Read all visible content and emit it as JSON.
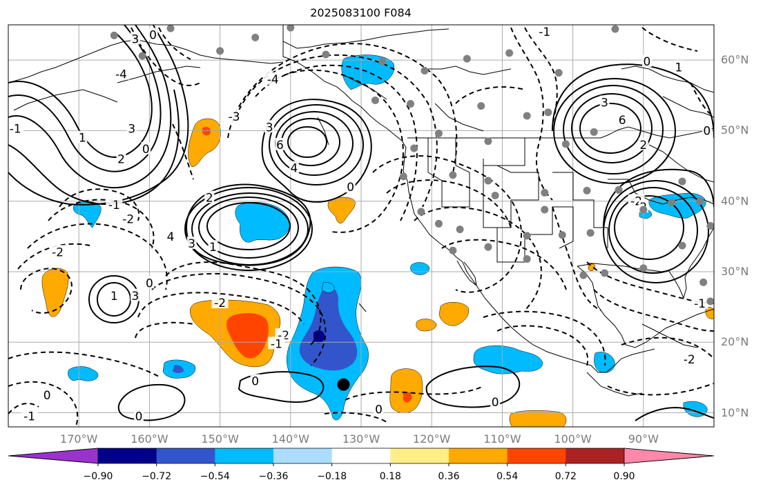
{
  "map": {
    "title": "2025083100 F084",
    "lon_ticks": [
      {
        "value": -170,
        "label": "170°W"
      },
      {
        "value": -160,
        "label": "160°W"
      },
      {
        "value": -150,
        "label": "150°W"
      },
      {
        "value": -140,
        "label": "140°W"
      },
      {
        "value": -130,
        "label": "130°W"
      },
      {
        "value": -120,
        "label": "120°W"
      },
      {
        "value": -110,
        "label": "110°W"
      },
      {
        "value": -100,
        "label": "100°W"
      },
      {
        "value": -90,
        "label": "90°W"
      }
    ],
    "lat_ticks": [
      {
        "value": 60,
        "label": "60°N"
      },
      {
        "value": 50,
        "label": "50°N"
      },
      {
        "value": 40,
        "label": "40°N"
      },
      {
        "value": 30,
        "label": "30°N"
      },
      {
        "value": 20,
        "label": "20°N"
      },
      {
        "value": 10,
        "label": "10°N"
      }
    ],
    "extent": {
      "lon_min": -180,
      "lon_max": -80,
      "lat_min": 8,
      "lat_max": 65
    },
    "colorbar": {
      "levels": [
        -0.9,
        -0.72,
        -0.54,
        -0.36,
        -0.18,
        0.18,
        0.36,
        0.54,
        0.72,
        0.9
      ],
      "labels": [
        "−0.90",
        "−0.72",
        "−0.54",
        "−0.36",
        "−0.18",
        "0.18",
        "0.36",
        "0.54",
        "0.72",
        "0.90"
      ],
      "colors": [
        "#9933cc",
        "#000088",
        "#3355cc",
        "#00bbff",
        "#aaddff",
        "#ffffff",
        "#ffee88",
        "#ffaa00",
        "#ff4400",
        "#aa2222",
        "#ff88aa"
      ]
    },
    "marker": {
      "lon": -132.5,
      "lat": 14,
      "color": "#000000"
    },
    "contour_labels": [
      {
        "text": "6",
        "lon": -141.5,
        "lat": 48
      },
      {
        "text": "4",
        "lon": -139.5,
        "lat": 44.7
      },
      {
        "text": "3",
        "lon": -143,
        "lat": 50.5
      },
      {
        "text": "0",
        "lon": -131.5,
        "lat": 42
      },
      {
        "text": "4",
        "lon": -157,
        "lat": 35
      },
      {
        "text": "3",
        "lon": -154,
        "lat": 34
      },
      {
        "text": "1",
        "lon": -151,
        "lat": 33.5
      },
      {
        "text": "2",
        "lon": -151.5,
        "lat": 40.5
      },
      {
        "text": "3",
        "lon": -162,
        "lat": 26.6
      },
      {
        "text": "1",
        "lon": -165,
        "lat": 26.6
      },
      {
        "text": "0",
        "lon": -160,
        "lat": 28.4
      },
      {
        "text": "-2",
        "lon": -173,
        "lat": 32.8
      },
      {
        "text": "-2",
        "lon": -150,
        "lat": 25.6
      },
      {
        "text": "-2",
        "lon": -141,
        "lat": 21
      },
      {
        "text": "-1",
        "lon": -142,
        "lat": 19.8
      },
      {
        "text": "-1",
        "lon": -165,
        "lat": 39.5
      },
      {
        "text": "-2",
        "lon": -163,
        "lat": 37.5
      },
      {
        "text": "0",
        "lon": -145,
        "lat": 14.5
      },
      {
        "text": "0",
        "lon": -161.5,
        "lat": 9.5
      },
      {
        "text": "0",
        "lon": -174.5,
        "lat": 12.5
      },
      {
        "text": "-1",
        "lon": -177,
        "lat": 9.5
      },
      {
        "text": "0",
        "lon": -127.5,
        "lat": 10.5
      },
      {
        "text": "0",
        "lon": -111,
        "lat": 11.5
      },
      {
        "text": "3",
        "lon": -162.5,
        "lat": 50.3
      },
      {
        "text": "2",
        "lon": -164,
        "lat": 46
      },
      {
        "text": "0",
        "lon": -160.5,
        "lat": 47.4
      },
      {
        "text": "1",
        "lon": -169.5,
        "lat": 49
      },
      {
        "text": "-1",
        "lon": -179,
        "lat": 50.3
      },
      {
        "text": "0",
        "lon": -159.5,
        "lat": 63.6
      },
      {
        "text": "3",
        "lon": -162,
        "lat": 63
      },
      {
        "text": "-4",
        "lon": -164,
        "lat": 58
      },
      {
        "text": "-4",
        "lon": -142.5,
        "lat": 57.3
      },
      {
        "text": "-3",
        "lon": -148,
        "lat": 52
      },
      {
        "text": "6",
        "lon": -93,
        "lat": 51.5
      },
      {
        "text": "3",
        "lon": -95.5,
        "lat": 54
      },
      {
        "text": "2",
        "lon": -90,
        "lat": 48
      },
      {
        "text": "0",
        "lon": -89.5,
        "lat": 59.8
      },
      {
        "text": "1",
        "lon": -85,
        "lat": 59
      },
      {
        "text": "-1",
        "lon": -104,
        "lat": 64
      },
      {
        "text": "-2",
        "lon": -91,
        "lat": 40
      },
      {
        "text": "2",
        "lon": -90,
        "lat": 39.2
      },
      {
        "text": "-1",
        "lon": -82,
        "lat": 25.5
      },
      {
        "text": "-2",
        "lon": -83.5,
        "lat": 17.6
      },
      {
        "text": "0",
        "lon": -81,
        "lat": 50
      }
    ],
    "stations": [
      {
        "lon": -165,
        "lat": 63.5
      },
      {
        "lon": -161,
        "lat": 60.6
      },
      {
        "lon": -157,
        "lat": 64.5
      },
      {
        "lon": -150,
        "lat": 61.3
      },
      {
        "lon": -145,
        "lat": 63.2
      },
      {
        "lon": -140,
        "lat": 64.6
      },
      {
        "lon": -135,
        "lat": 60.8
      },
      {
        "lon": -127,
        "lat": 59.8
      },
      {
        "lon": -121,
        "lat": 58.5
      },
      {
        "lon": -115,
        "lat": 60.2
      },
      {
        "lon": -109,
        "lat": 61
      },
      {
        "lon": -102,
        "lat": 58.2
      },
      {
        "lon": -94,
        "lat": 64.4
      },
      {
        "lon": -113,
        "lat": 53.5
      },
      {
        "lon": -123,
        "lat": 53.8
      },
      {
        "lon": -128,
        "lat": 54.3
      },
      {
        "lon": -103.5,
        "lat": 52.6
      },
      {
        "lon": -106.5,
        "lat": 52.1
      },
      {
        "lon": -97,
        "lat": 49.8
      },
      {
        "lon": -101,
        "lat": 48.1
      },
      {
        "lon": -112,
        "lat": 48.5
      },
      {
        "lon": -119,
        "lat": 49.6
      },
      {
        "lon": -122.5,
        "lat": 47.5
      },
      {
        "lon": -124,
        "lat": 43.5
      },
      {
        "lon": -117,
        "lat": 43.7
      },
      {
        "lon": -112,
        "lat": 42.9
      },
      {
        "lon": -104,
        "lat": 41.2
      },
      {
        "lon": -98,
        "lat": 41.5
      },
      {
        "lon": -93.5,
        "lat": 41.6
      },
      {
        "lon": -90,
        "lat": 38.8
      },
      {
        "lon": -86,
        "lat": 39.8
      },
      {
        "lon": -84.5,
        "lat": 42.8
      },
      {
        "lon": -82,
        "lat": 40
      },
      {
        "lon": -121.5,
        "lat": 38.5
      },
      {
        "lon": -119,
        "lat": 36.8
      },
      {
        "lon": -117,
        "lat": 33
      },
      {
        "lon": -112,
        "lat": 33.5
      },
      {
        "lon": -106.5,
        "lat": 35.1
      },
      {
        "lon": -101.5,
        "lat": 35.2
      },
      {
        "lon": -97.5,
        "lat": 35.5
      },
      {
        "lon": -95.5,
        "lat": 29.8
      },
      {
        "lon": -90,
        "lat": 30.5
      },
      {
        "lon": -84.5,
        "lat": 33.7
      },
      {
        "lon": -81.5,
        "lat": 28.5
      },
      {
        "lon": -106.5,
        "lat": 31.8
      },
      {
        "lon": -98.5,
        "lat": 29.5
      },
      {
        "lon": -104,
        "lat": 38.8
      },
      {
        "lon": -111,
        "lat": 40.8
      },
      {
        "lon": -116,
        "lat": 36
      },
      {
        "lon": -80.5,
        "lat": 25.8
      },
      {
        "lon": -80.5,
        "lat": 36.5
      }
    ]
  }
}
